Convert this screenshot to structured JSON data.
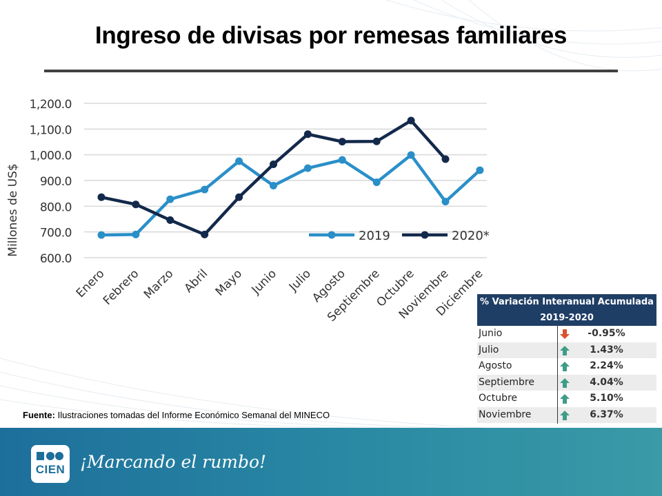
{
  "title": "Ingreso de divisas por remesas familiares",
  "chart_data": {
    "type": "line",
    "ylabel": "Millones de US$",
    "ylim": [
      600,
      1200
    ],
    "yticks": [
      "1,200.0",
      "1,100.0",
      "1,000.0",
      "900.0",
      "800.0",
      "700.0",
      "600.0"
    ],
    "ytick_values": [
      1200,
      1100,
      1000,
      900,
      800,
      700,
      600
    ],
    "categories": [
      "Enero",
      "Febrero",
      "Marzo",
      "Abril",
      "Mayo",
      "Junio",
      "Julio",
      "Agosto",
      "Septiembre",
      "Octubre",
      "Noviembre",
      "Diciembre"
    ],
    "legend_position": "inside-right",
    "series": [
      {
        "name": "2019",
        "color": "#2a8fc8",
        "values": [
          688,
          690,
          827,
          865,
          975,
          880,
          948,
          980,
          893,
          999,
          818,
          940
        ]
      },
      {
        "name": "2020*",
        "color": "#13294b",
        "values": [
          835,
          807,
          746,
          690,
          835,
          963,
          1080,
          1051,
          1052,
          1133,
          983,
          null
        ]
      }
    ]
  },
  "variation_table": {
    "title_line1": "% Variación Interanual Acumulada",
    "title_line2": "2019-2020",
    "rows": [
      {
        "month": "Junio",
        "direction": "down",
        "value": "-0.95%"
      },
      {
        "month": "Julio",
        "direction": "up",
        "value": "1.43%"
      },
      {
        "month": "Agosto",
        "direction": "up",
        "value": "2.24%"
      },
      {
        "month": "Septiembre",
        "direction": "up",
        "value": "4.04%"
      },
      {
        "month": "Octubre",
        "direction": "up",
        "value": "5.10%"
      },
      {
        "month": "Noviembre",
        "direction": "up",
        "value": "6.37%"
      }
    ],
    "colors": {
      "header": "#1f3e66",
      "up": "#3f9c88",
      "down": "#d9542c"
    }
  },
  "source": {
    "label": "Fuente:",
    "text": "Ilustraciones tomadas del Informe  Económico Semanal del MINECO"
  },
  "footer": {
    "logo_text": "CIEN",
    "slogan": "¡Marcando el rumbo!"
  }
}
